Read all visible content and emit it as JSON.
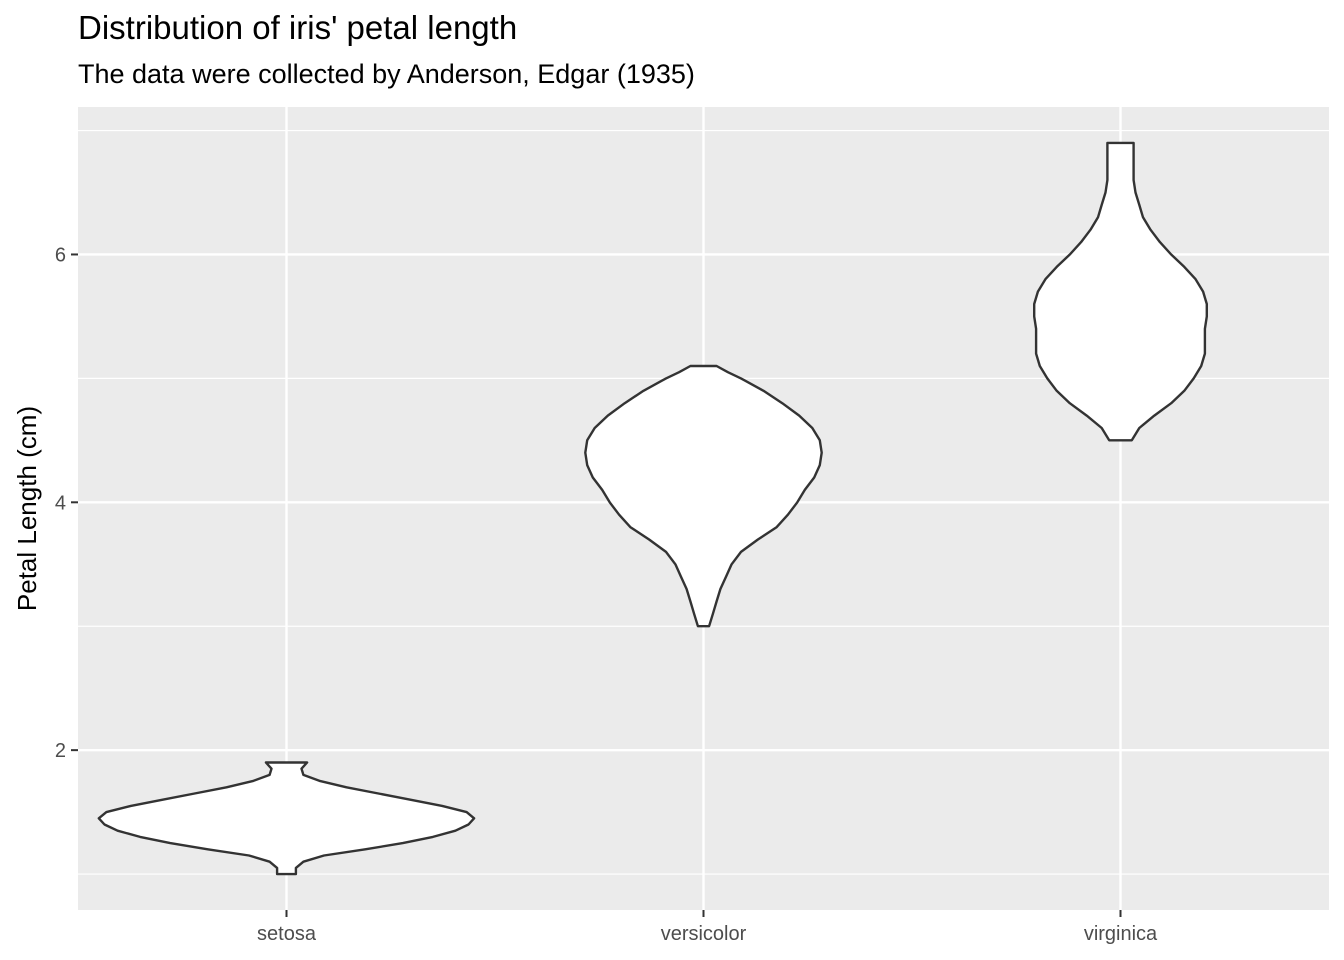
{
  "chart_data": {
    "type": "violin",
    "title": "Distribution of iris' petal length",
    "subtitle": "The data were collected by Anderson, Edgar (1935)",
    "xlabel": "",
    "ylabel": "Petal Length (cm)",
    "categories": [
      "setosa",
      "versicolor",
      "virginica"
    ],
    "ylim": [
      0.71,
      7.19
    ],
    "yticks": [
      2,
      4,
      6
    ],
    "grid": true,
    "panel_background": "#EBEBEB",
    "violin_fill": "#FFFFFF",
    "violin_outline": "#333333",
    "violins": [
      {
        "category": "setosa",
        "min": 1.0,
        "max": 1.9,
        "density_profile": [
          {
            "y": 1.0,
            "w": 0.05
          },
          {
            "y": 1.05,
            "w": 0.05
          },
          {
            "y": 1.1,
            "w": 0.09
          },
          {
            "y": 1.15,
            "w": 0.2
          },
          {
            "y": 1.2,
            "w": 0.42
          },
          {
            "y": 1.25,
            "w": 0.62
          },
          {
            "y": 1.3,
            "w": 0.78
          },
          {
            "y": 1.35,
            "w": 0.9
          },
          {
            "y": 1.4,
            "w": 0.97
          },
          {
            "y": 1.45,
            "w": 1.0
          },
          {
            "y": 1.5,
            "w": 0.96
          },
          {
            "y": 1.55,
            "w": 0.83
          },
          {
            "y": 1.6,
            "w": 0.66
          },
          {
            "y": 1.65,
            "w": 0.49
          },
          {
            "y": 1.7,
            "w": 0.32
          },
          {
            "y": 1.75,
            "w": 0.18
          },
          {
            "y": 1.8,
            "w": 0.09
          },
          {
            "y": 1.85,
            "w": 0.08
          },
          {
            "y": 1.9,
            "w": 0.11
          }
        ]
      },
      {
        "category": "versicolor",
        "min": 3.0,
        "max": 5.1,
        "density_profile": [
          {
            "y": 3.0,
            "w": 0.03
          },
          {
            "y": 3.1,
            "w": 0.05
          },
          {
            "y": 3.2,
            "w": 0.07
          },
          {
            "y": 3.3,
            "w": 0.09
          },
          {
            "y": 3.4,
            "w": 0.12
          },
          {
            "y": 3.5,
            "w": 0.15
          },
          {
            "y": 3.6,
            "w": 0.2
          },
          {
            "y": 3.7,
            "w": 0.29
          },
          {
            "y": 3.8,
            "w": 0.39
          },
          {
            "y": 3.9,
            "w": 0.45
          },
          {
            "y": 4.0,
            "w": 0.5
          },
          {
            "y": 4.1,
            "w": 0.54
          },
          {
            "y": 4.2,
            "w": 0.59
          },
          {
            "y": 4.3,
            "w": 0.62
          },
          {
            "y": 4.4,
            "w": 0.63
          },
          {
            "y": 4.5,
            "w": 0.62
          },
          {
            "y": 4.6,
            "w": 0.58
          },
          {
            "y": 4.7,
            "w": 0.51
          },
          {
            "y": 4.8,
            "w": 0.42
          },
          {
            "y": 4.9,
            "w": 0.32
          },
          {
            "y": 5.0,
            "w": 0.2
          },
          {
            "y": 5.05,
            "w": 0.13
          },
          {
            "y": 5.1,
            "w": 0.07
          }
        ]
      },
      {
        "category": "virginica",
        "min": 4.5,
        "max": 6.9,
        "density_profile": [
          {
            "y": 4.5,
            "w": 0.06
          },
          {
            "y": 4.6,
            "w": 0.1
          },
          {
            "y": 4.7,
            "w": 0.18
          },
          {
            "y": 4.8,
            "w": 0.27
          },
          {
            "y": 4.9,
            "w": 0.34
          },
          {
            "y": 5.0,
            "w": 0.39
          },
          {
            "y": 5.1,
            "w": 0.43
          },
          {
            "y": 5.2,
            "w": 0.45
          },
          {
            "y": 5.3,
            "w": 0.45
          },
          {
            "y": 5.4,
            "w": 0.45
          },
          {
            "y": 5.5,
            "w": 0.46
          },
          {
            "y": 5.6,
            "w": 0.46
          },
          {
            "y": 5.7,
            "w": 0.44
          },
          {
            "y": 5.8,
            "w": 0.4
          },
          {
            "y": 5.9,
            "w": 0.34
          },
          {
            "y": 6.0,
            "w": 0.27
          },
          {
            "y": 6.1,
            "w": 0.21
          },
          {
            "y": 6.2,
            "w": 0.16
          },
          {
            "y": 6.3,
            "w": 0.12
          },
          {
            "y": 6.4,
            "w": 0.1
          },
          {
            "y": 6.5,
            "w": 0.08
          },
          {
            "y": 6.6,
            "w": 0.07
          },
          {
            "y": 6.7,
            "w": 0.07
          },
          {
            "y": 6.8,
            "w": 0.07
          },
          {
            "y": 6.9,
            "w": 0.07
          }
        ]
      }
    ]
  }
}
